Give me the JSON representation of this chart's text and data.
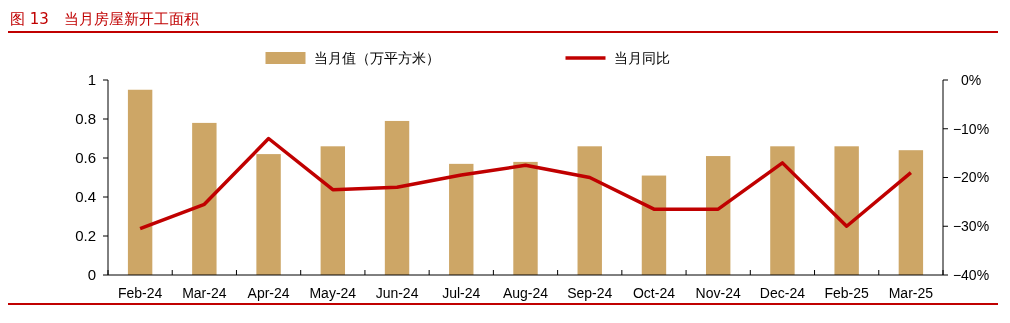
{
  "chart_data": {
    "type": "bar",
    "title": "图 13　当月房屋新开工面积",
    "categories": [
      "Feb-24",
      "Mar-24",
      "Apr-24",
      "May-24",
      "Jun-24",
      "Jul-24",
      "Aug-24",
      "Sep-24",
      "Oct-24",
      "Nov-24",
      "Dec-24",
      "Feb-25",
      "Mar-25"
    ],
    "series": [
      {
        "name": "当月值（万平方米）",
        "color": "#cda666",
        "values": [
          0.95,
          0.78,
          0.62,
          0.66,
          0.79,
          0.57,
          0.58,
          0.66,
          0.51,
          0.61,
          0.66,
          0.66,
          0.64
        ]
      },
      {
        "name": "当月同比",
        "type": "line",
        "axis": "y2",
        "color": "#c00000",
        "values": [
          -30.5,
          -25.5,
          -12,
          -22.5,
          -22,
          -19.5,
          -17.5,
          -20,
          -26.5,
          -26.5,
          -17,
          -30,
          -19
        ]
      }
    ],
    "ylim": [
      0,
      1
    ],
    "yticks": [
      0,
      0.2,
      0.4,
      0.6,
      0.8,
      1
    ],
    "y2lim": [
      -40,
      0
    ],
    "y2ticks": [
      {
        "value": -40,
        "label": "−40%"
      },
      {
        "value": -30,
        "label": "−30%"
      },
      {
        "value": -20,
        "label": "−20%"
      },
      {
        "value": -10,
        "label": "−10%"
      },
      {
        "value": 0,
        "label": "0%"
      }
    ],
    "legend": "top",
    "grid": false,
    "marker": "none",
    "line_style": "solid"
  }
}
